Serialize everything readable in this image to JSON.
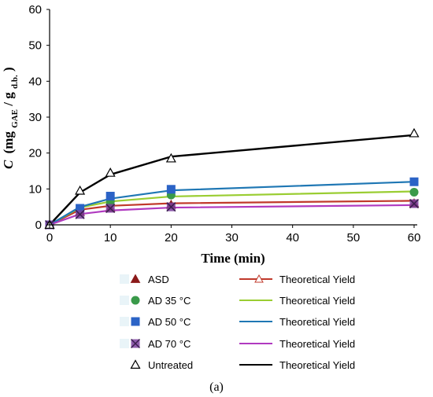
{
  "chart_data": {
    "type": "line",
    "xlabel": "Time (min)",
    "ylabel_main": "C",
    "ylabel_unit": "(mg",
    "ylabel_sub1": "GAE",
    "ylabel_mid": "/ g",
    "ylabel_sub2": "d.b.",
    "ylabel_close": ")",
    "caption": "(a)",
    "xlim": [
      0,
      60
    ],
    "ylim": [
      0,
      60
    ],
    "xticks": [
      0,
      10,
      20,
      30,
      40,
      50,
      60
    ],
    "yticks": [
      0,
      10,
      20,
      30,
      40,
      50,
      60
    ],
    "grid": false,
    "legend_position": "below",
    "series": [
      {
        "name": "ASD",
        "marker": "triangle",
        "color": "#8b1a1a",
        "x": [
          0,
          5,
          10,
          20,
          60
        ],
        "y": [
          0,
          3.6,
          4.7,
          5.6,
          6.0
        ],
        "fit_name": "Theoretical Yield",
        "fit_color": "#c0392b",
        "fit_x": [
          0,
          5,
          10,
          20,
          60
        ],
        "fit_y": [
          0,
          4.2,
          5.3,
          6.0,
          6.7
        ]
      },
      {
        "name": "AD 35 °C",
        "marker": "circle",
        "color": "#3a9a4a",
        "x": [
          0,
          5,
          10,
          20,
          60
        ],
        "y": [
          0,
          4.4,
          6.4,
          8.3,
          9.1
        ],
        "fit_name": "Theoretical Yield",
        "fit_color": "#9acd32",
        "fit_x": [
          0,
          5,
          10,
          20,
          60
        ],
        "fit_y": [
          0,
          4.8,
          6.5,
          7.9,
          9.3
        ]
      },
      {
        "name": "AD 50 °C",
        "marker": "square",
        "color": "#2b63c6",
        "x": [
          0,
          5,
          10,
          20,
          60
        ],
        "y": [
          0,
          4.6,
          8.0,
          9.9,
          12.0
        ],
        "fit_name": "Theoretical Yield",
        "fit_color": "#1f77b4",
        "fit_x": [
          0,
          5,
          10,
          20,
          60
        ],
        "fit_y": [
          0,
          5.0,
          7.3,
          9.6,
          12.0
        ]
      },
      {
        "name": "AD 70 °C",
        "marker": "xsquare",
        "color": "#7b3f9e",
        "x": [
          0,
          5,
          10,
          20,
          60
        ],
        "y": [
          0,
          2.9,
          4.6,
          5.0,
          5.9
        ],
        "fit_name": "Theoretical Yield",
        "fit_color": "#b03ac0",
        "fit_x": [
          0,
          5,
          10,
          20,
          60
        ],
        "fit_y": [
          0,
          3.0,
          4.0,
          4.8,
          5.5
        ]
      },
      {
        "name": "Untreated",
        "marker": "open-triangle",
        "color": "#000000",
        "x": [
          0,
          5,
          10,
          20,
          60
        ],
        "y": [
          0,
          9.5,
          14.5,
          18.5,
          25.5
        ],
        "fit_name": "Theoretical Yield",
        "fit_color": "#000000",
        "fit_x": [
          0,
          5,
          10,
          20,
          60
        ],
        "fit_y": [
          0,
          9.0,
          14.0,
          19.0,
          25.0
        ]
      }
    ]
  }
}
